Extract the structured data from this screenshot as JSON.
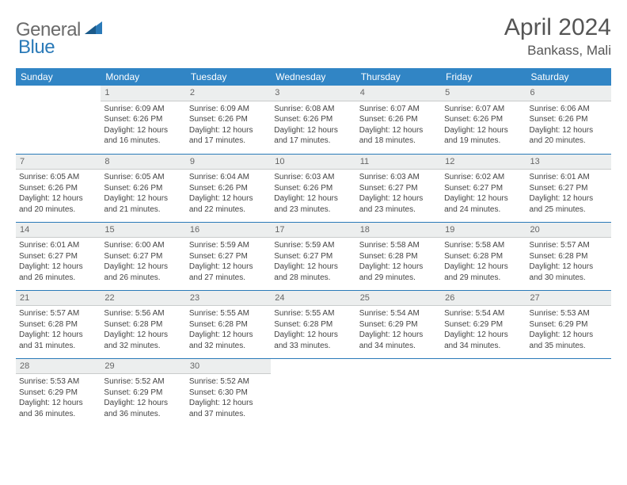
{
  "brand": {
    "part1": "General",
    "part2": "Blue"
  },
  "title": "April 2024",
  "location": "Bankass, Mali",
  "colors": {
    "header_bg": "#3185c5",
    "header_text": "#ffffff",
    "border": "#2a7ab8",
    "daynum_bg": "#eceeee",
    "text": "#444444",
    "logo_gray": "#6b6b6b",
    "logo_blue": "#2a7ab8"
  },
  "fonts": {
    "title_size": 30,
    "location_size": 17,
    "header_size": 12,
    "cell_size": 10
  },
  "dayHeaders": [
    "Sunday",
    "Monday",
    "Tuesday",
    "Wednesday",
    "Thursday",
    "Friday",
    "Saturday"
  ],
  "weeks": [
    [
      {
        "n": "",
        "sunrise": "",
        "sunset": "",
        "daylight": ""
      },
      {
        "n": "1",
        "sunrise": "6:09 AM",
        "sunset": "6:26 PM",
        "daylight": "12 hours and 16 minutes."
      },
      {
        "n": "2",
        "sunrise": "6:09 AM",
        "sunset": "6:26 PM",
        "daylight": "12 hours and 17 minutes."
      },
      {
        "n": "3",
        "sunrise": "6:08 AM",
        "sunset": "6:26 PM",
        "daylight": "12 hours and 17 minutes."
      },
      {
        "n": "4",
        "sunrise": "6:07 AM",
        "sunset": "6:26 PM",
        "daylight": "12 hours and 18 minutes."
      },
      {
        "n": "5",
        "sunrise": "6:07 AM",
        "sunset": "6:26 PM",
        "daylight": "12 hours and 19 minutes."
      },
      {
        "n": "6",
        "sunrise": "6:06 AM",
        "sunset": "6:26 PM",
        "daylight": "12 hours and 20 minutes."
      }
    ],
    [
      {
        "n": "7",
        "sunrise": "6:05 AM",
        "sunset": "6:26 PM",
        "daylight": "12 hours and 20 minutes."
      },
      {
        "n": "8",
        "sunrise": "6:05 AM",
        "sunset": "6:26 PM",
        "daylight": "12 hours and 21 minutes."
      },
      {
        "n": "9",
        "sunrise": "6:04 AM",
        "sunset": "6:26 PM",
        "daylight": "12 hours and 22 minutes."
      },
      {
        "n": "10",
        "sunrise": "6:03 AM",
        "sunset": "6:26 PM",
        "daylight": "12 hours and 23 minutes."
      },
      {
        "n": "11",
        "sunrise": "6:03 AM",
        "sunset": "6:27 PM",
        "daylight": "12 hours and 23 minutes."
      },
      {
        "n": "12",
        "sunrise": "6:02 AM",
        "sunset": "6:27 PM",
        "daylight": "12 hours and 24 minutes."
      },
      {
        "n": "13",
        "sunrise": "6:01 AM",
        "sunset": "6:27 PM",
        "daylight": "12 hours and 25 minutes."
      }
    ],
    [
      {
        "n": "14",
        "sunrise": "6:01 AM",
        "sunset": "6:27 PM",
        "daylight": "12 hours and 26 minutes."
      },
      {
        "n": "15",
        "sunrise": "6:00 AM",
        "sunset": "6:27 PM",
        "daylight": "12 hours and 26 minutes."
      },
      {
        "n": "16",
        "sunrise": "5:59 AM",
        "sunset": "6:27 PM",
        "daylight": "12 hours and 27 minutes."
      },
      {
        "n": "17",
        "sunrise": "5:59 AM",
        "sunset": "6:27 PM",
        "daylight": "12 hours and 28 minutes."
      },
      {
        "n": "18",
        "sunrise": "5:58 AM",
        "sunset": "6:28 PM",
        "daylight": "12 hours and 29 minutes."
      },
      {
        "n": "19",
        "sunrise": "5:58 AM",
        "sunset": "6:28 PM",
        "daylight": "12 hours and 29 minutes."
      },
      {
        "n": "20",
        "sunrise": "5:57 AM",
        "sunset": "6:28 PM",
        "daylight": "12 hours and 30 minutes."
      }
    ],
    [
      {
        "n": "21",
        "sunrise": "5:57 AM",
        "sunset": "6:28 PM",
        "daylight": "12 hours and 31 minutes."
      },
      {
        "n": "22",
        "sunrise": "5:56 AM",
        "sunset": "6:28 PM",
        "daylight": "12 hours and 32 minutes."
      },
      {
        "n": "23",
        "sunrise": "5:55 AM",
        "sunset": "6:28 PM",
        "daylight": "12 hours and 32 minutes."
      },
      {
        "n": "24",
        "sunrise": "5:55 AM",
        "sunset": "6:28 PM",
        "daylight": "12 hours and 33 minutes."
      },
      {
        "n": "25",
        "sunrise": "5:54 AM",
        "sunset": "6:29 PM",
        "daylight": "12 hours and 34 minutes."
      },
      {
        "n": "26",
        "sunrise": "5:54 AM",
        "sunset": "6:29 PM",
        "daylight": "12 hours and 34 minutes."
      },
      {
        "n": "27",
        "sunrise": "5:53 AM",
        "sunset": "6:29 PM",
        "daylight": "12 hours and 35 minutes."
      }
    ],
    [
      {
        "n": "28",
        "sunrise": "5:53 AM",
        "sunset": "6:29 PM",
        "daylight": "12 hours and 36 minutes."
      },
      {
        "n": "29",
        "sunrise": "5:52 AM",
        "sunset": "6:29 PM",
        "daylight": "12 hours and 36 minutes."
      },
      {
        "n": "30",
        "sunrise": "5:52 AM",
        "sunset": "6:30 PM",
        "daylight": "12 hours and 37 minutes."
      },
      {
        "n": "",
        "sunrise": "",
        "sunset": "",
        "daylight": ""
      },
      {
        "n": "",
        "sunrise": "",
        "sunset": "",
        "daylight": ""
      },
      {
        "n": "",
        "sunrise": "",
        "sunset": "",
        "daylight": ""
      },
      {
        "n": "",
        "sunrise": "",
        "sunset": "",
        "daylight": ""
      }
    ]
  ],
  "labels": {
    "sunrise": "Sunrise: ",
    "sunset": "Sunset: ",
    "daylight": "Daylight: "
  }
}
